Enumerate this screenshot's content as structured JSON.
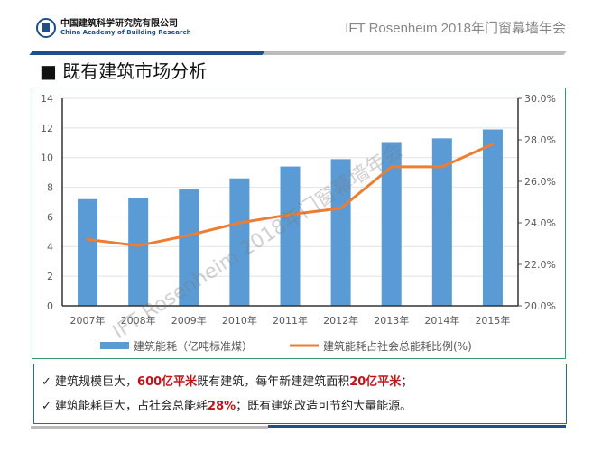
{
  "header": {
    "org_cn": "中国建筑科学研究院有限公司",
    "org_en": "China Academy of Building Research",
    "conference": "IFT Rosenheim 2018年门窗幕墙年会"
  },
  "title": "既有建筑市场分析",
  "title_bullet": "■",
  "watermark": "IFT Rosenheim 2018年门窗幕墙年会",
  "chart_data": {
    "type": "bar",
    "categories": [
      "2007年",
      "2008年",
      "2009年",
      "2010年",
      "2011年",
      "2012年",
      "2013年",
      "2014年",
      "2015年"
    ],
    "series": [
      {
        "name": "建筑能耗（亿吨标准煤）",
        "type": "bar",
        "axis": "left",
        "color": "#5b9bd5",
        "values": [
          7.2,
          7.3,
          7.85,
          8.6,
          9.4,
          9.9,
          11.05,
          11.3,
          11.9
        ]
      },
      {
        "name": "建筑能耗占社会总能耗比例(%)",
        "type": "line",
        "axis": "right",
        "color": "#ed7d31",
        "values": [
          23.2,
          22.9,
          23.4,
          24.0,
          24.4,
          24.7,
          26.7,
          26.7,
          27.8
        ]
      }
    ],
    "ylim": [
      0,
      14
    ],
    "yticks": [
      "0",
      "2",
      "4",
      "6",
      "8",
      "10",
      "12",
      "14"
    ],
    "y2lim": [
      20,
      30
    ],
    "y2ticks": [
      "20.0%",
      "22.0%",
      "24.0%",
      "26.0%",
      "28.0%",
      "30.0%"
    ],
    "grid": true,
    "legend": "bottom"
  },
  "bullets": [
    {
      "check": "✓",
      "parts": [
        {
          "t": "建筑规模巨大，"
        },
        {
          "t": "600亿平米",
          "em": true
        },
        {
          "t": "既有建筑，每年新建建筑面积"
        },
        {
          "t": "20亿平米",
          "em": true
        },
        {
          "t": "；"
        }
      ]
    },
    {
      "check": "✓",
      "parts": [
        {
          "t": "建筑能耗巨大，占社会总能耗"
        },
        {
          "t": "28%",
          "em": true
        },
        {
          "t": "；既有建筑改造可节约大量能源。"
        }
      ]
    }
  ]
}
